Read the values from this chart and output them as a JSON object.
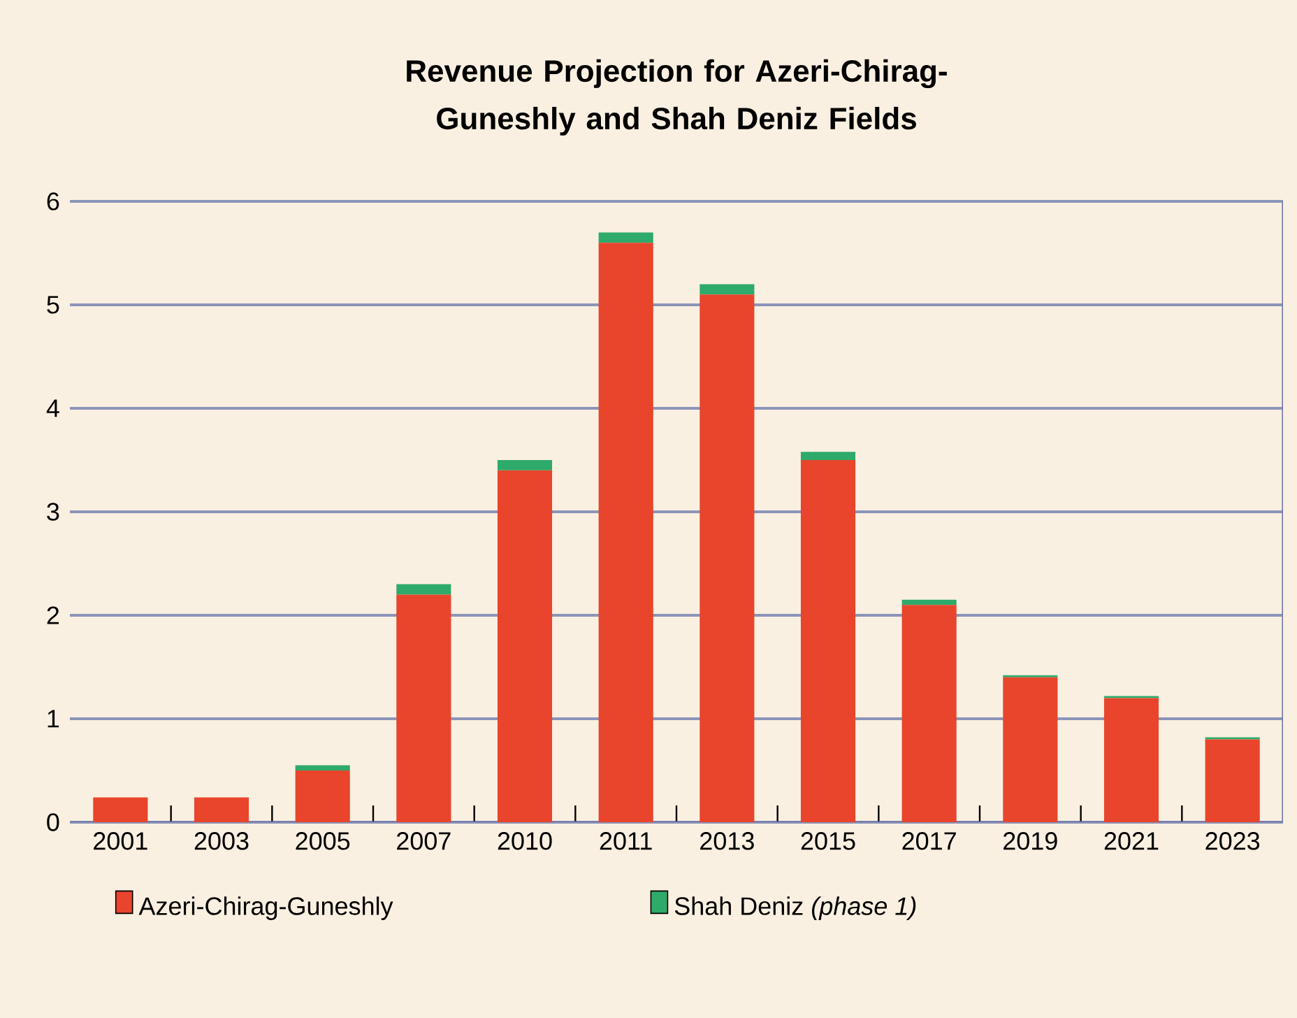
{
  "chart_data": {
    "type": "bar",
    "title": "Revenue Projection for Azeri-Chirag-Guneshly and Shah Deniz Fields",
    "stacked": true,
    "categories": [
      "2001",
      "2003",
      "2005",
      "2007",
      "2010",
      "2011",
      "2013",
      "2015",
      "2017",
      "2019",
      "2021",
      "2023"
    ],
    "series": [
      {
        "name": "Azeri-Chirag-Guneshly",
        "color": "#e8452c",
        "values": [
          0.24,
          0.24,
          0.5,
          2.2,
          3.4,
          5.6,
          5.1,
          3.5,
          2.1,
          1.4,
          1.2,
          0.8
        ]
      },
      {
        "name": "Shah Deniz *(phase 1)*",
        "color": "#2eaa6a",
        "values": [
          0,
          0,
          0.05,
          0.1,
          0.1,
          0.1,
          0.1,
          0.08,
          0.05,
          0.02,
          0.02,
          0.02
        ]
      }
    ],
    "ylim": [
      0,
      6
    ],
    "yticks": [
      0,
      1,
      2,
      3,
      4,
      5,
      6
    ],
    "grid": "y",
    "legend": "bottom"
  }
}
